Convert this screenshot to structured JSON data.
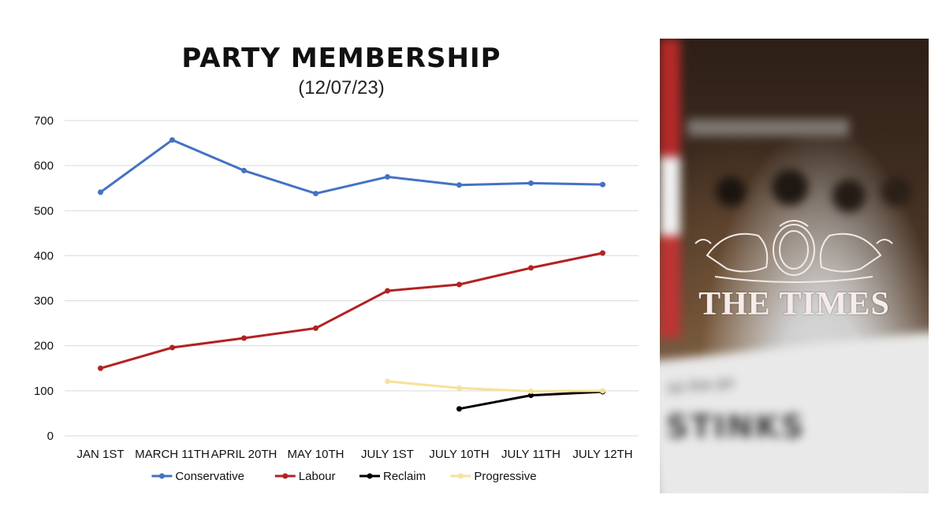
{
  "chart_data": {
    "type": "line",
    "title": "PARTY MEMBERSHIP",
    "subtitle": "(12/07/23)",
    "categories": [
      "JAN 1ST",
      "MARCH 11TH",
      "APRIL 20TH",
      "MAY 10TH",
      "JULY 1ST",
      "JULY 10TH",
      "JULY 11TH",
      "JULY 12TH"
    ],
    "ylim": [
      0,
      700
    ],
    "yticks": [
      0,
      100,
      200,
      300,
      400,
      500,
      600,
      700
    ],
    "grid": true,
    "legend_position": "bottom",
    "series": [
      {
        "name": "Conservative",
        "color": "#4472c4",
        "values": [
          541,
          657,
          589,
          538,
          575,
          557,
          561,
          558
        ]
      },
      {
        "name": "Labour",
        "color": "#b22222",
        "values": [
          150,
          196,
          217,
          239,
          322,
          336,
          373,
          406
        ]
      },
      {
        "name": "Reclaim",
        "color": "#000000",
        "values": [
          null,
          null,
          null,
          null,
          null,
          60,
          90,
          98
        ]
      },
      {
        "name": "Progressive",
        "color": "#f5e29b",
        "values": [
          null,
          null,
          null,
          null,
          121,
          106,
          99,
          100
        ]
      }
    ]
  },
  "photo": {
    "logo_text": "THE TIMES",
    "paper_text_small": "lol the po",
    "paper_text_large": "STINKS"
  }
}
